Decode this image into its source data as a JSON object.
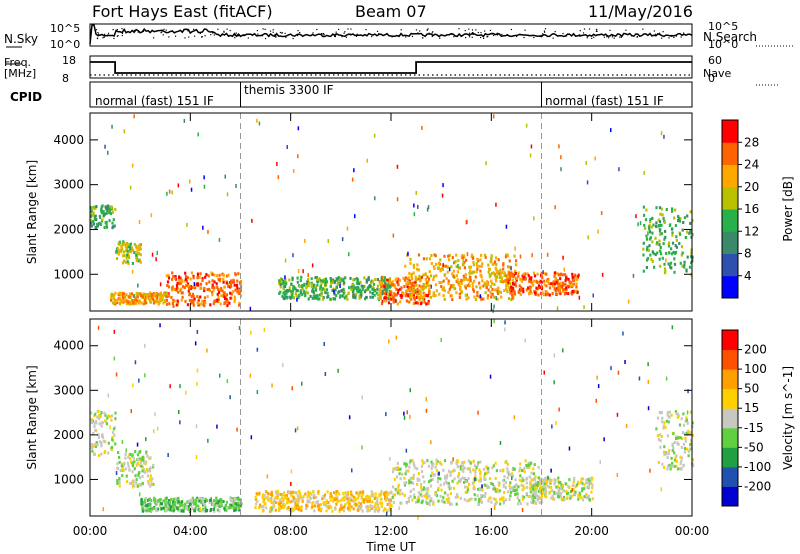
{
  "header": {
    "station": "Fort Hays East (fitACF)",
    "beam": "Beam 07",
    "date": "11/May/2016"
  },
  "panels": {
    "nsky": {
      "left_label": "N.Sky",
      "right_label": "N.Search",
      "left_ticks": [
        "10^5",
        "10^0"
      ],
      "right_ticks": [
        "10^5",
        "10^0"
      ]
    },
    "freq": {
      "left_label": "Freq.",
      "left_unit": "[MHz]",
      "left_ticks": [
        "18",
        "8"
      ],
      "right_label": "Nave",
      "right_ticks": [
        "60",
        "0"
      ]
    },
    "cpid": {
      "label": "CPID",
      "segments": [
        "normal (fast) 151 IF",
        "themis 3300 IF",
        "normal (fast) 151 IF"
      ]
    }
  },
  "chart_data": [
    {
      "type": "heatmap",
      "name": "power",
      "ylabel": "Slant Range [km]",
      "ylim": [
        180,
        4600
      ],
      "yticks": [
        "1000",
        "2000",
        "3000",
        "4000"
      ],
      "ytick_values": [
        1000,
        2000,
        3000,
        4000
      ],
      "colorbar_label": "Power [dB]",
      "colorbar_ticks": [
        "4",
        "8",
        "12",
        "16",
        "20",
        "24",
        "28"
      ],
      "colorbar_range": [
        0,
        32
      ],
      "colors": [
        "#0000ff",
        "#3050b0",
        "#3a8a6a",
        "#28b04a",
        "#b8c000",
        "#ffa800",
        "#ff6400",
        "#ff0000"
      ],
      "bands": [
        {
          "t": [
            0.0,
            1.0
          ],
          "r": [
            2000,
            2500
          ],
          "level": 3
        },
        {
          "t": [
            1.0,
            2.0
          ],
          "r": [
            1200,
            1700
          ],
          "level": 4
        },
        {
          "t": [
            0.8,
            3.0
          ],
          "r": [
            300,
            550
          ],
          "level": 5
        },
        {
          "t": [
            3.0,
            6.0
          ],
          "r": [
            250,
            1000
          ],
          "level": 6
        },
        {
          "t": [
            7.5,
            12.0
          ],
          "r": [
            400,
            900
          ],
          "level": 3
        },
        {
          "t": [
            11.5,
            13.5
          ],
          "r": [
            300,
            900
          ],
          "level": 6
        },
        {
          "t": [
            12.5,
            17.0
          ],
          "r": [
            400,
            1400
          ],
          "level": 5
        },
        {
          "t": [
            16.5,
            19.5
          ],
          "r": [
            500,
            1000
          ],
          "level": 6
        },
        {
          "t": [
            22.0,
            24.0
          ],
          "r": [
            1000,
            2500
          ],
          "level": 3
        }
      ]
    },
    {
      "type": "heatmap",
      "name": "velocity",
      "ylabel": "Slant Range [km]",
      "ylim": [
        180,
        4600
      ],
      "yticks": [
        "1000",
        "2000",
        "3000",
        "4000"
      ],
      "ytick_values": [
        1000,
        2000,
        3000,
        4000
      ],
      "colorbar_label": "Velocity [m s^-1]",
      "colorbar_ticks": [
        "200",
        "100",
        "50",
        "15",
        "-15",
        "-50",
        "-100",
        "-200"
      ],
      "colorbar_range": [
        -250,
        250
      ],
      "colors": [
        "#0000d0",
        "#2050b0",
        "#20a040",
        "#60d040",
        "#c8c8c0",
        "#ffd000",
        "#ffa000",
        "#ff5000",
        "#ff0000"
      ],
      "bands": [
        {
          "t": [
            0.0,
            1.0
          ],
          "r": [
            1500,
            2500
          ],
          "level": 4
        },
        {
          "t": [
            1.0,
            2.5
          ],
          "r": [
            800,
            1600
          ],
          "level": 4
        },
        {
          "t": [
            2.0,
            6.0
          ],
          "r": [
            250,
            550
          ],
          "level": 3
        },
        {
          "t": [
            6.5,
            12.0
          ],
          "r": [
            250,
            700
          ],
          "level": 5
        },
        {
          "t": [
            12.0,
            18.0
          ],
          "r": [
            400,
            1400
          ],
          "level": 4
        },
        {
          "t": [
            17.5,
            20.0
          ],
          "r": [
            500,
            1000
          ],
          "level": 4
        },
        {
          "t": [
            22.5,
            24.0
          ],
          "r": [
            1200,
            2500
          ],
          "level": 4
        }
      ]
    }
  ],
  "time_axis": {
    "xlabel": "Time UT",
    "xlim": [
      0,
      24
    ],
    "ticks": [
      "00:00",
      "04:00",
      "08:00",
      "12:00",
      "16:00",
      "20:00",
      "00:00"
    ],
    "tick_hours": [
      0,
      4,
      8,
      12,
      16,
      20,
      24
    ]
  }
}
